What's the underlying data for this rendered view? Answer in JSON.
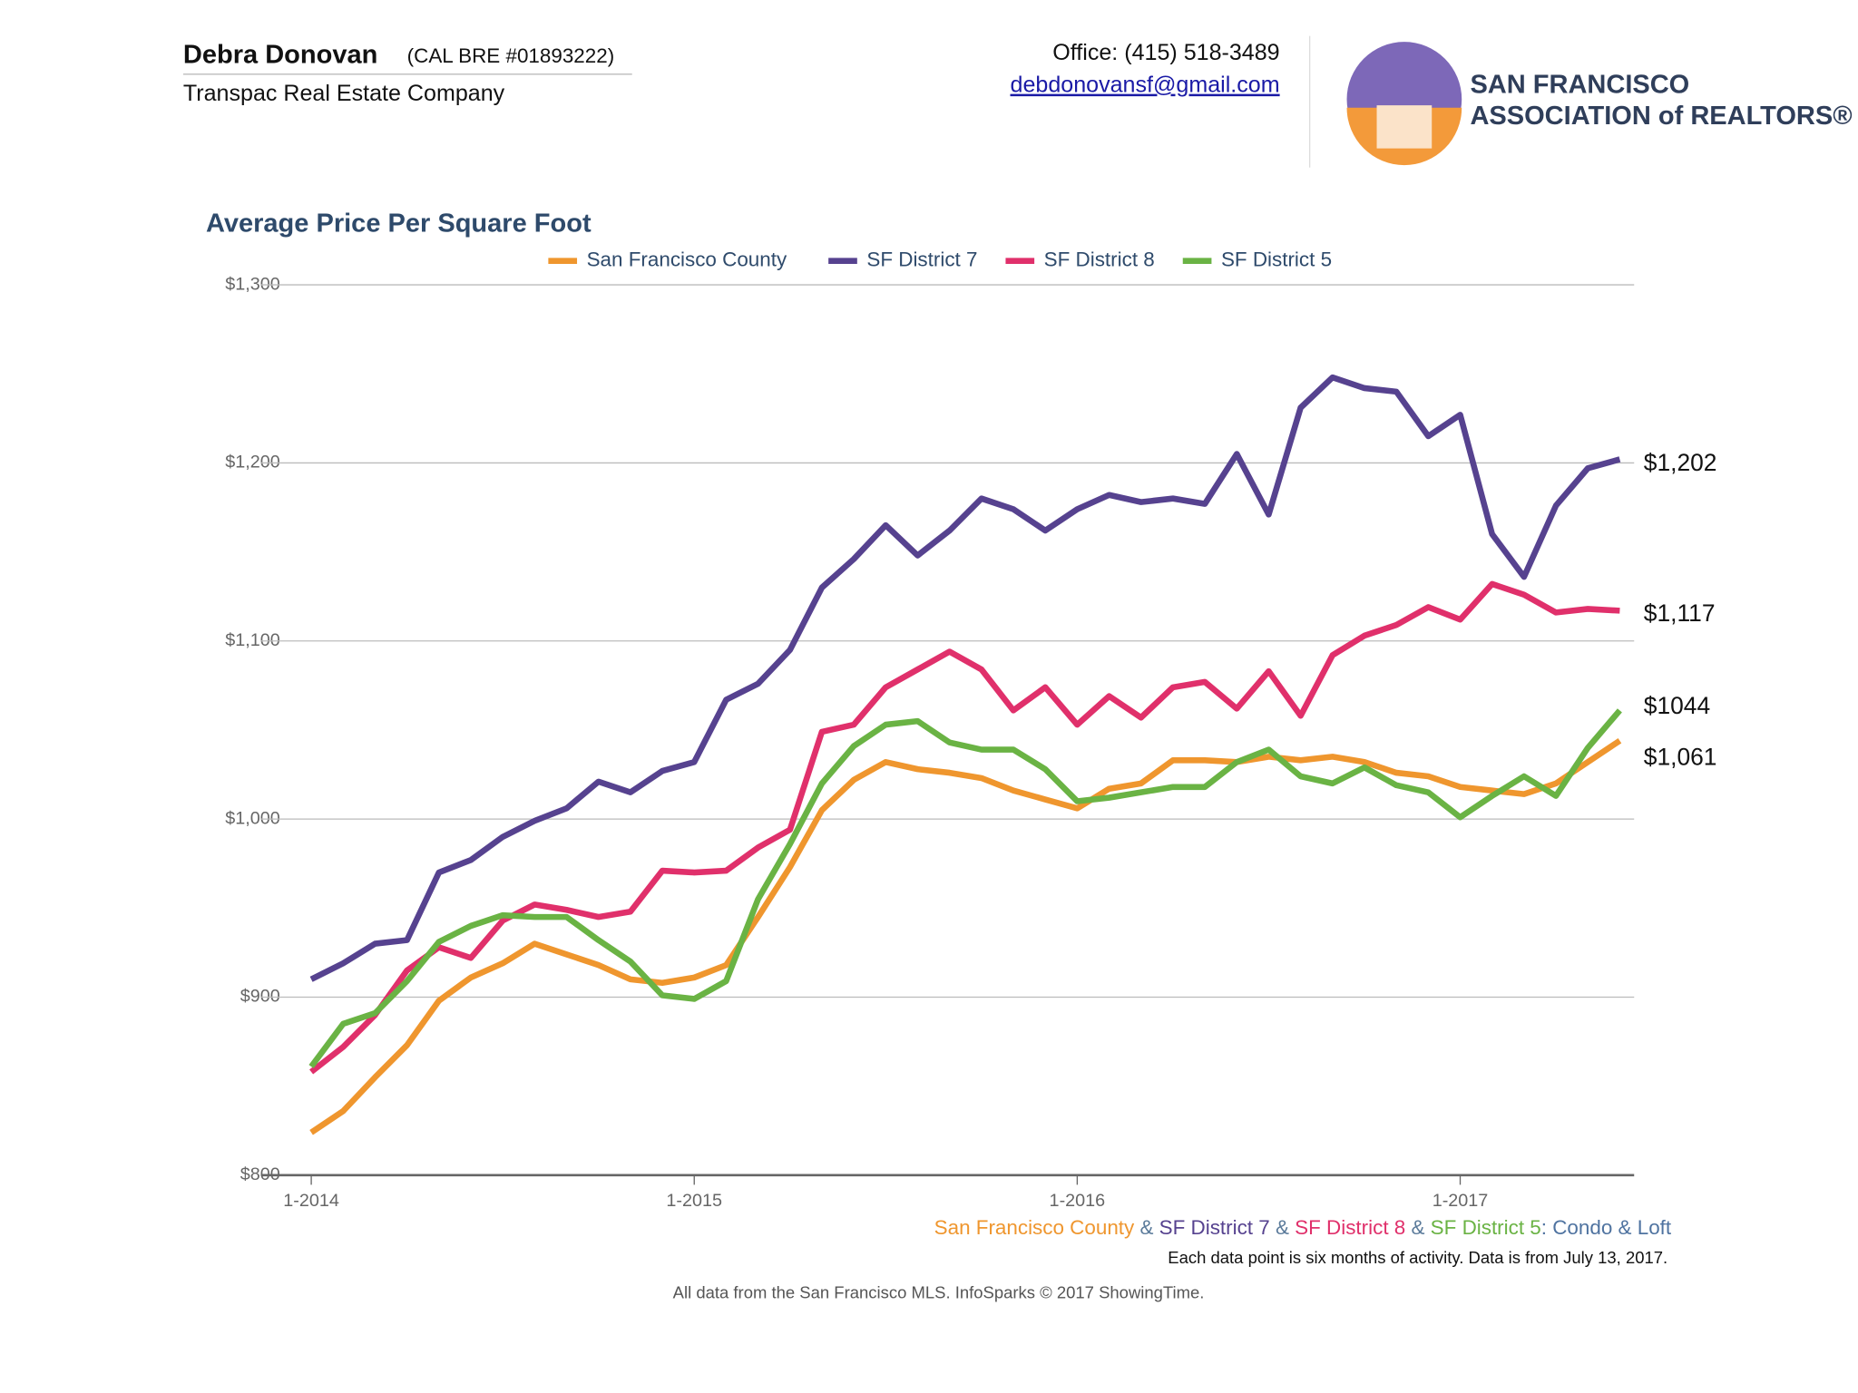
{
  "header": {
    "name": "Debra Donovan",
    "license": "(CAL BRE #01893222)",
    "company": "Transpac Real Estate Company",
    "office": "Office: (415) 518-3489",
    "email": "debdonovansf@gmail.com",
    "logo_line1": "SAN FRANCISCO",
    "logo_line2": "ASSOCIATION of REALTORS®"
  },
  "chart_data": {
    "type": "line",
    "title": "Average Price Per Square Foot",
    "categories": [
      "1-2014",
      null,
      null,
      null,
      null,
      null,
      null,
      null,
      null,
      null,
      null,
      null,
      "1-2015",
      null,
      null,
      null,
      null,
      null,
      null,
      null,
      null,
      null,
      null,
      null,
      "1-2016",
      null,
      null,
      null,
      null,
      null,
      null,
      null,
      null,
      null,
      null,
      null,
      "1-2017",
      null,
      null,
      null,
      null,
      null
    ],
    "series": [
      {
        "name": "San Francisco County",
        "color": "#ef962e",
        "values": [
          824,
          836,
          855,
          873,
          898,
          911,
          919,
          930,
          924,
          918,
          910,
          908,
          911,
          918,
          945,
          973,
          1005,
          1022,
          1032,
          1028,
          1026,
          1023,
          1016,
          1011,
          1006,
          1017,
          1020,
          1033,
          1033,
          1032,
          1035,
          1033,
          1035,
          1032,
          1026,
          1024,
          1018,
          1016,
          1014,
          1020,
          1032,
          1044
        ]
      },
      {
        "name": "SF District 7",
        "color": "#56428f",
        "values": [
          910,
          919,
          930,
          932,
          970,
          977,
          990,
          999,
          1006,
          1021,
          1015,
          1027,
          1032,
          1067,
          1076,
          1095,
          1130,
          1146,
          1165,
          1148,
          1162,
          1180,
          1174,
          1162,
          1174,
          1182,
          1178,
          1180,
          1177,
          1205,
          1171,
          1231,
          1248,
          1242,
          1240,
          1215,
          1227,
          1160,
          1136,
          1176,
          1197,
          1202
        ]
      },
      {
        "name": "SF District 8",
        "color": "#e0306b",
        "values": [
          858,
          872,
          890,
          915,
          928,
          922,
          943,
          952,
          949,
          945,
          948,
          971,
          970,
          971,
          984,
          994,
          1049,
          1053,
          1074,
          1084,
          1094,
          1084,
          1061,
          1074,
          1053,
          1069,
          1057,
          1074,
          1077,
          1062,
          1083,
          1058,
          1092,
          1103,
          1109,
          1119,
          1112,
          1132,
          1126,
          1116,
          1118,
          1117
        ]
      },
      {
        "name": "SF District 5",
        "color": "#6ab344",
        "values": [
          861,
          885,
          891,
          909,
          931,
          940,
          946,
          945,
          945,
          932,
          920,
          901,
          899,
          909,
          955,
          986,
          1020,
          1041,
          1053,
          1055,
          1043,
          1039,
          1039,
          1028,
          1010,
          1012,
          1015,
          1018,
          1018,
          1032,
          1039,
          1024,
          1020,
          1029,
          1019,
          1015,
          1001,
          1013,
          1024,
          1013,
          1040,
          1061
        ]
      }
    ],
    "ylim": [
      800,
      1300
    ],
    "yticks": [
      {
        "value": 800,
        "label": "$800"
      },
      {
        "value": 900,
        "label": "$900"
      },
      {
        "value": 1000,
        "label": "$1,000"
      },
      {
        "value": 1100,
        "label": "$1,100"
      },
      {
        "value": 1200,
        "label": "$1,200"
      },
      {
        "value": 1300,
        "label": "$1,300"
      }
    ],
    "grid": true,
    "legend": "top",
    "annotations": [
      "$1,202",
      "$1,117",
      "$1044",
      "$1,061"
    ],
    "footer_legend": [
      "San Francisco County",
      " & ",
      "SF District 7",
      " & ",
      "SF District 8",
      " & ",
      "SF District 5",
      ": Condo & Loft"
    ],
    "note": "Each data point is six months of activity. Data is from July 13, 2017.",
    "source": "All data from the San Francisco MLS. InfoSparks © 2017 ShowingTime."
  }
}
